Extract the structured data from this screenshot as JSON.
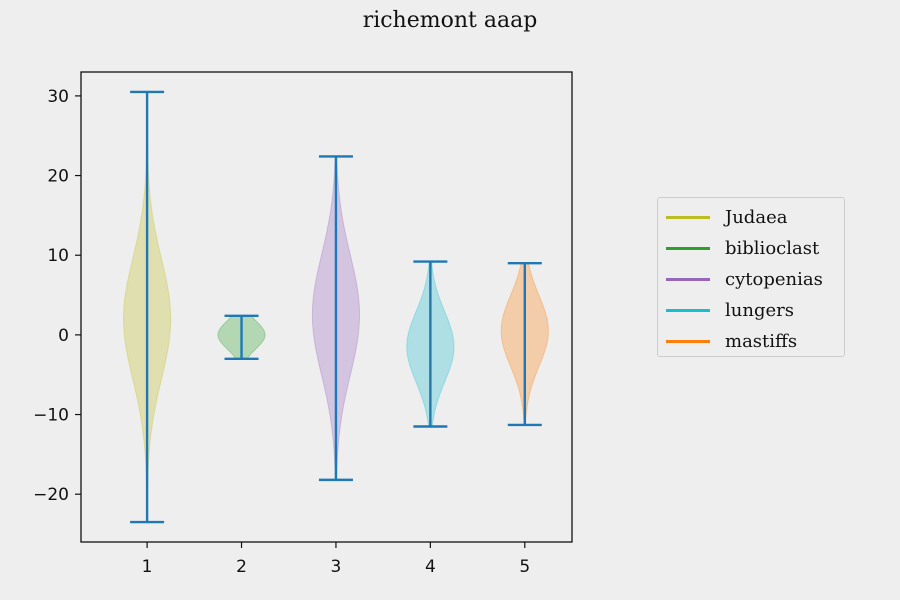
{
  "chart_data": {
    "type": "violin",
    "title": "richemont aaap",
    "xlabel": "",
    "ylabel": "",
    "x_ticks": [
      "1",
      "2",
      "3",
      "4",
      "5"
    ],
    "y_ticks": [
      -20,
      -10,
      0,
      10,
      20,
      30
    ],
    "ylim": [
      -26,
      33
    ],
    "xlim": [
      0.3,
      5.5
    ],
    "grid": false,
    "legend_position": "right",
    "whisker_color": "#1f77b4",
    "series": [
      {
        "name": "Judaea",
        "x": 1,
        "color": "#bcbd22",
        "min": -23.5,
        "max": 30.5,
        "center": 2.0,
        "spread": [
          6,
          0.45
        ],
        "halfwidth": 0.25
      },
      {
        "name": "biblioclast",
        "x": 2,
        "color": "#2ca02c",
        "min": -3.0,
        "max": 2.4,
        "center": 0.0,
        "spread": [
          1.4,
          0.8
        ],
        "halfwidth": 0.25
      },
      {
        "name": "cytopenias",
        "x": 3,
        "color": "#9467bd",
        "min": -18.2,
        "max": 22.4,
        "center": 2.5,
        "spread": [
          6,
          0.5
        ],
        "halfwidth": 0.25
      },
      {
        "name": "lungers",
        "x": 4,
        "color": "#17becf",
        "min": -11.5,
        "max": 9.2,
        "center": -1.5,
        "spread": [
          3.5,
          0.6
        ],
        "halfwidth": 0.25
      },
      {
        "name": "mastiffs",
        "x": 5,
        "color": "#ff7f0e",
        "min": -11.3,
        "max": 9.0,
        "center": 0.5,
        "spread": [
          3.5,
          0.6
        ],
        "halfwidth": 0.25
      }
    ]
  }
}
